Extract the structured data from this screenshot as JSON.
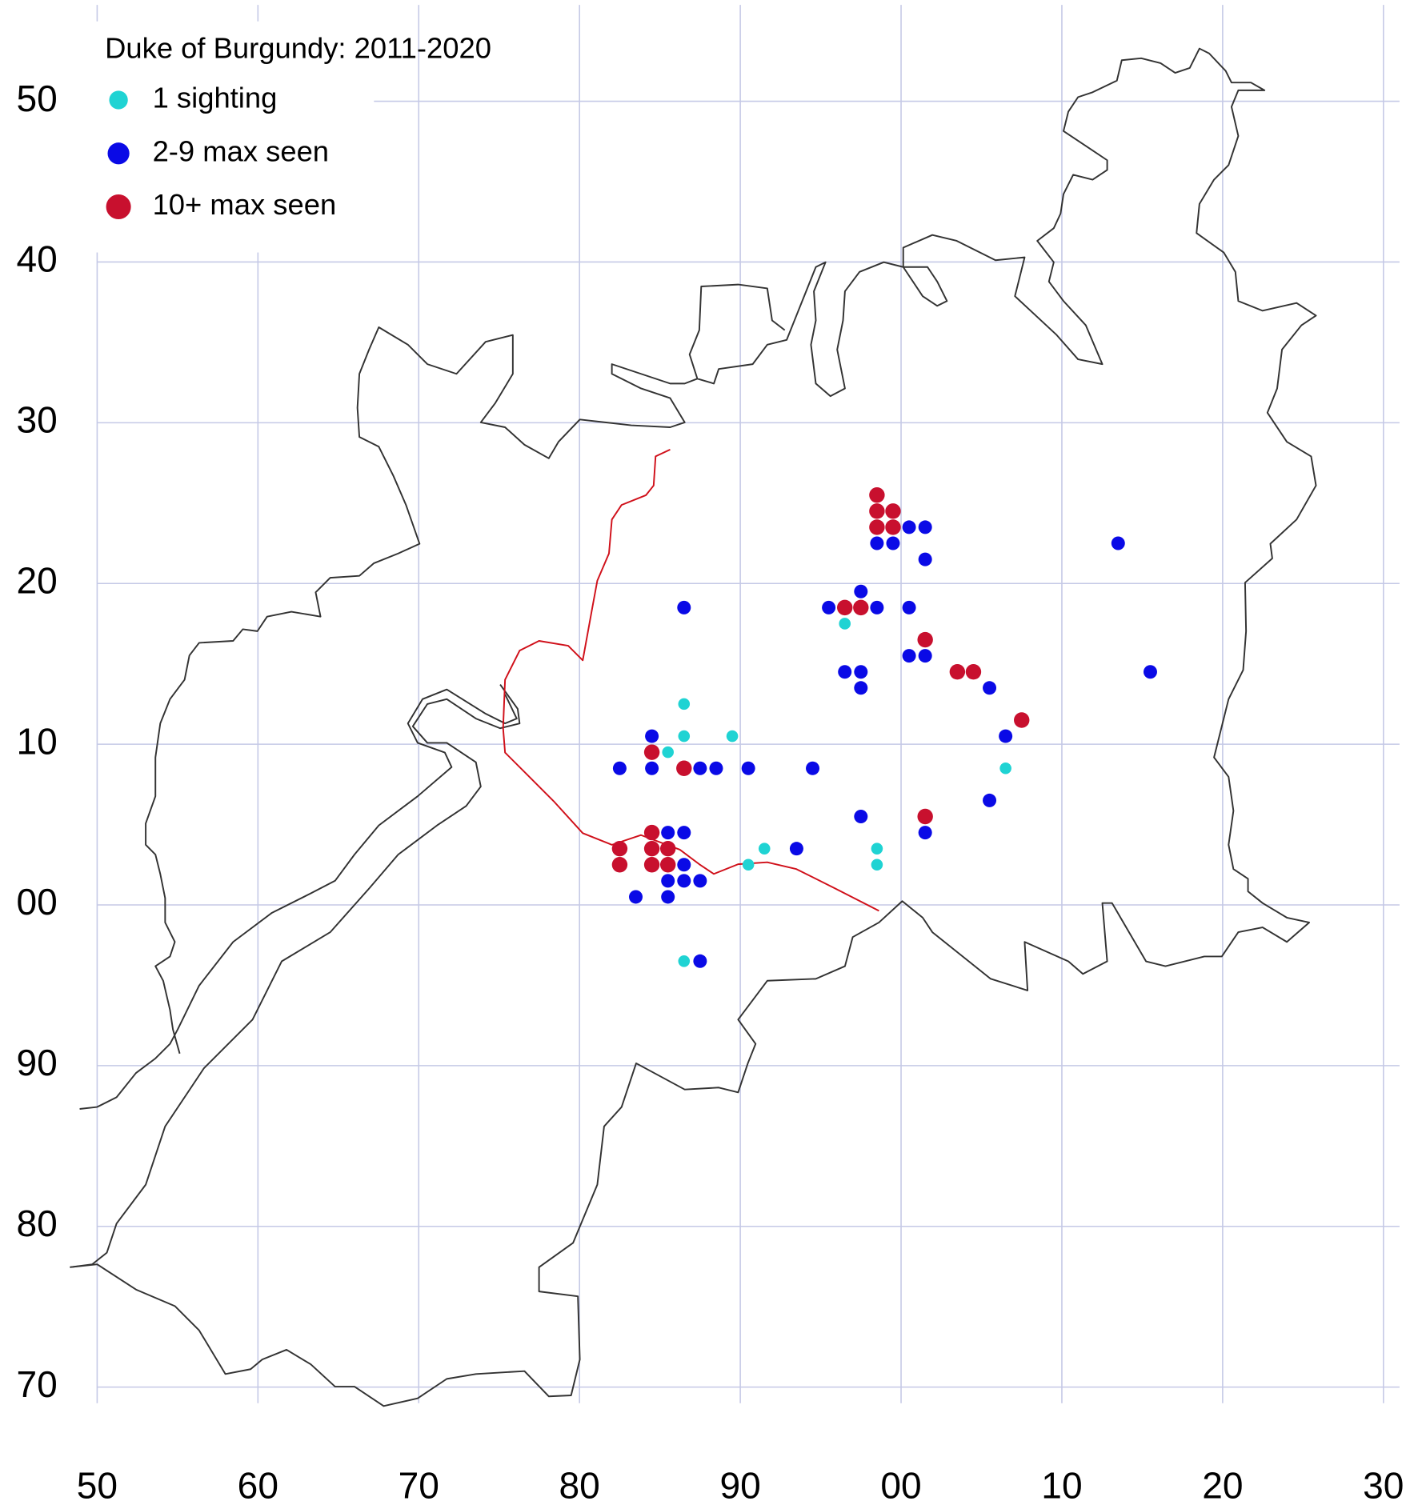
{
  "chart_data": {
    "type": "scatter",
    "title": "Duke of Burgundy:  2011-2020",
    "xlim": [
      50,
      131
    ],
    "ylim": [
      69,
      156
    ],
    "xticks": [
      50,
      60,
      70,
      80,
      90,
      {
        "value": 100,
        "label": "00"
      },
      {
        "value": 110,
        "label": "10"
      },
      {
        "value": 120,
        "label": "20"
      },
      {
        "value": 130,
        "label": "30"
      }
    ],
    "yticks": [
      70,
      80,
      90,
      {
        "value": 100,
        "label": "00"
      },
      {
        "value": 110,
        "label": "10"
      },
      {
        "value": 120,
        "label": "20"
      },
      {
        "value": 130,
        "label": "30"
      },
      {
        "value": 140,
        "label": "40"
      },
      {
        "value": 150,
        "label": "50"
      }
    ],
    "grid": true,
    "legend": "top-left",
    "series": [
      {
        "name": "1 sighting",
        "color": "#1fd3d3",
        "marker_radius": 6,
        "x": [
          96.5,
          86.5,
          86.5,
          89.5,
          85.5,
          106.5,
          91.5,
          90.5,
          98.5,
          98.5,
          86.5
        ],
        "values": [
          117.5,
          112.5,
          110.5,
          110.5,
          109.5,
          108.5,
          103.5,
          102.5,
          103.5,
          102.5,
          96.5
        ]
      },
      {
        "name": "2-9 max seen",
        "color": "#0a0ae6",
        "marker_radius": 7,
        "x": [
          113.5,
          115.5,
          98.5,
          99.5,
          100.5,
          101.5,
          101.5,
          97.5,
          95.5,
          98.5,
          100.5,
          86.5,
          100.5,
          101.5,
          96.5,
          97.5,
          97.5,
          105.5,
          106.5,
          84.5,
          82.5,
          84.5,
          87.5,
          88.5,
          90.5,
          94.5,
          105.5,
          97.5,
          101.5,
          85.5,
          86.5,
          93.5,
          86.5,
          85.5,
          86.5,
          87.5,
          83.5,
          85.5,
          87.5
        ],
        "values": [
          122.5,
          114.5,
          122.5,
          122.5,
          123.5,
          123.5,
          121.5,
          119.5,
          118.5,
          118.5,
          118.5,
          118.5,
          115.5,
          115.5,
          114.5,
          114.5,
          113.5,
          113.5,
          110.5,
          110.5,
          108.5,
          108.5,
          108.5,
          108.5,
          108.5,
          108.5,
          106.5,
          105.5,
          104.5,
          104.5,
          104.5,
          103.5,
          102.5,
          101.5,
          101.5,
          101.5,
          100.5,
          100.5,
          96.5
        ]
      },
      {
        "name": "10+ max seen",
        "color": "#c8102e",
        "marker_radius": 8,
        "x": [
          98.5,
          98.5,
          99.5,
          98.5,
          99.5,
          96.5,
          97.5,
          101.5,
          103.5,
          104.5,
          107.5,
          84.5,
          86.5,
          101.5,
          84.5,
          82.5,
          84.5,
          85.5,
          82.5,
          84.5,
          85.5
        ],
        "values": [
          125.5,
          124.5,
          124.5,
          123.5,
          123.5,
          118.5,
          118.5,
          116.5,
          114.5,
          114.5,
          111.5,
          109.5,
          108.5,
          105.5,
          104.5,
          103.5,
          103.5,
          103.5,
          102.5,
          102.5,
          102.5
        ]
      }
    ]
  }
}
